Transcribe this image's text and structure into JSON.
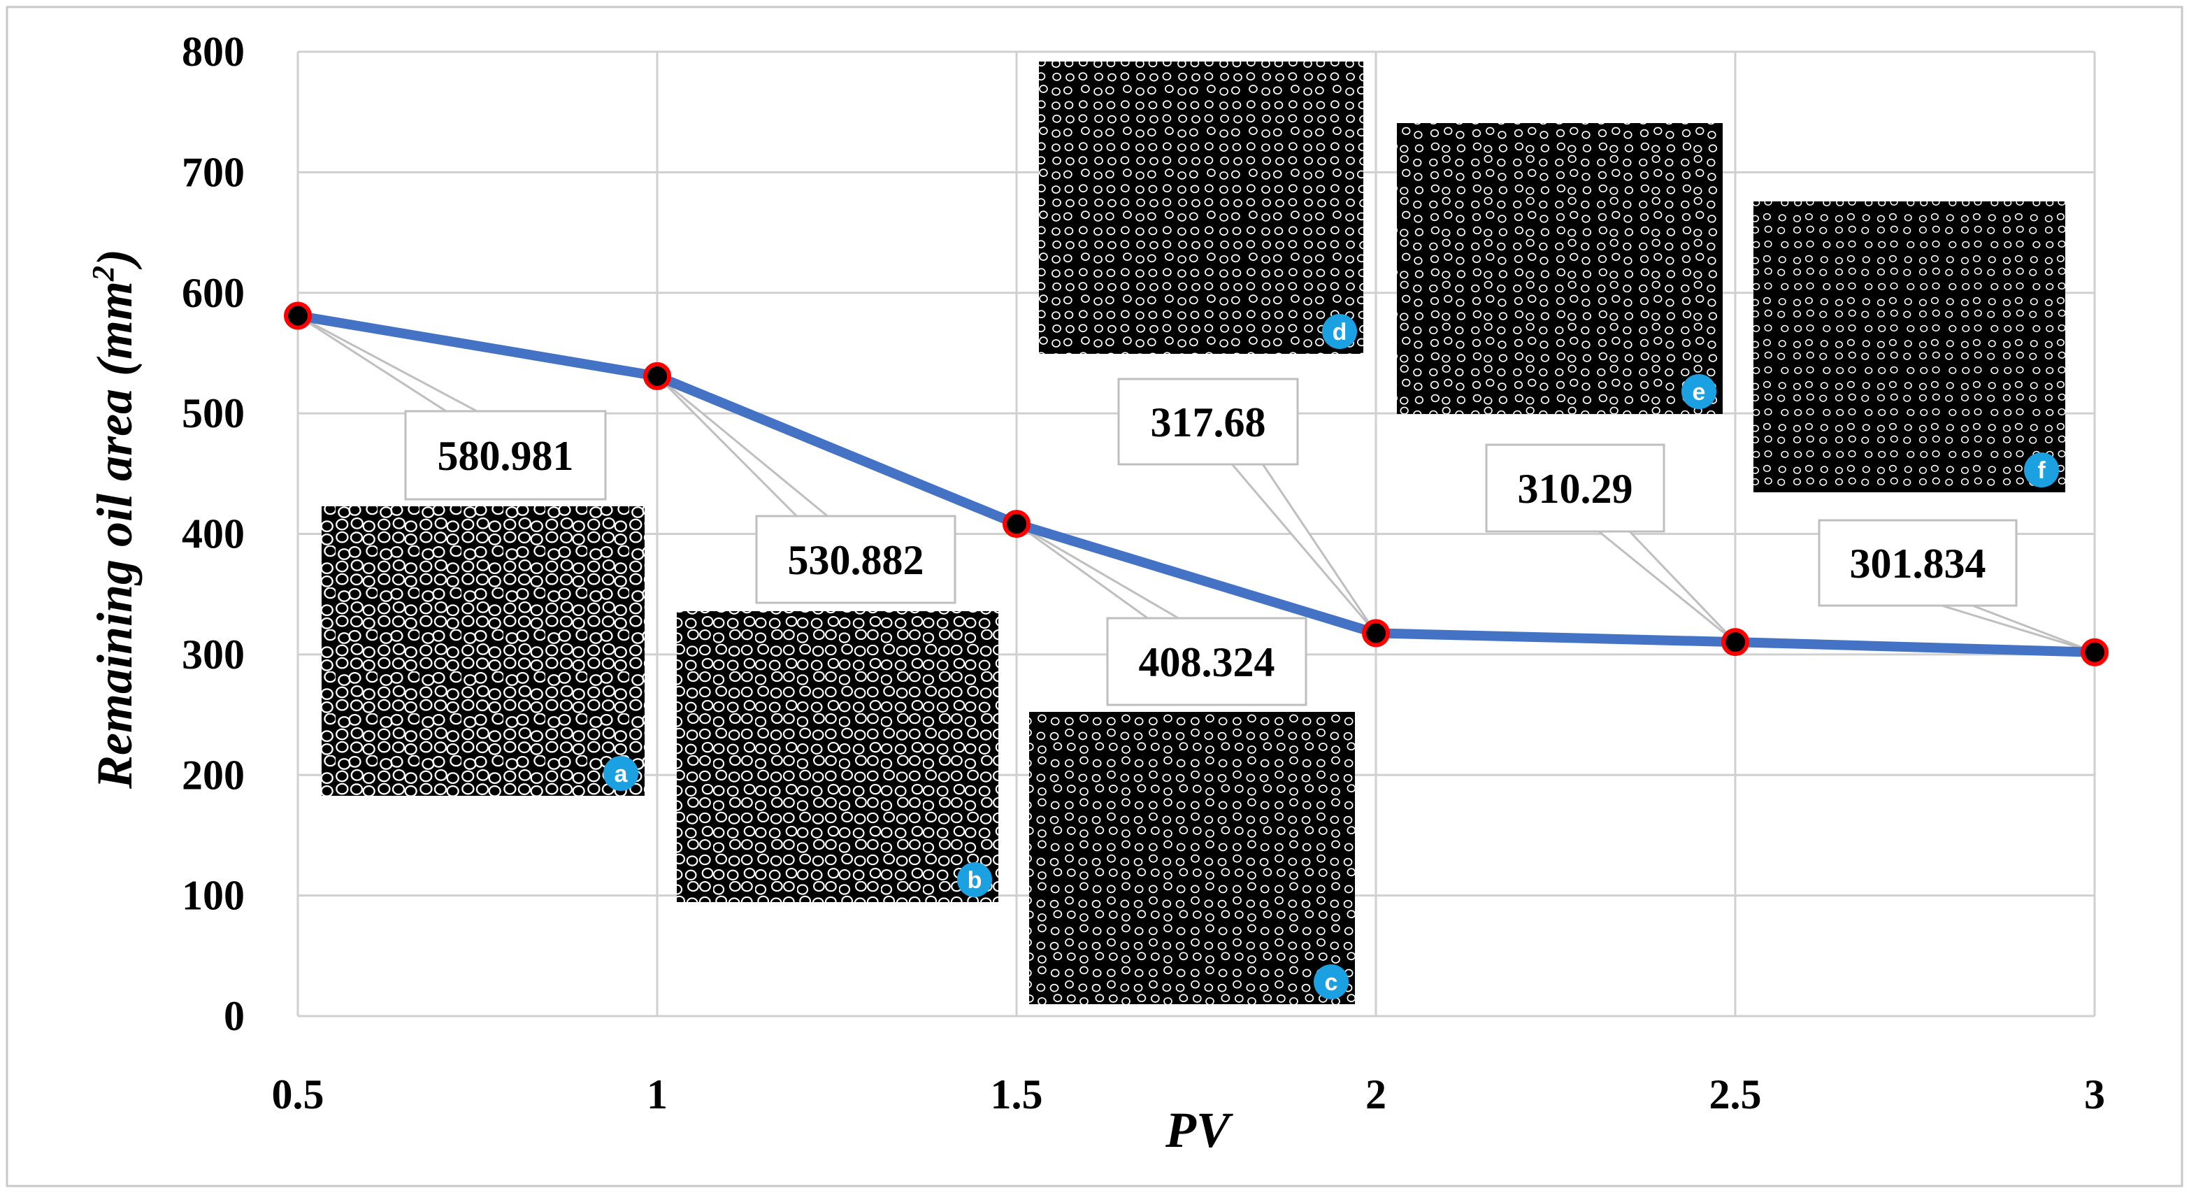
{
  "chart_data": {
    "type": "line",
    "x": [
      0.5,
      1,
      1.5,
      2,
      2.5,
      3
    ],
    "x_tick_labels": [
      "0.5",
      "1",
      "1.5",
      "2",
      "2.5",
      "3"
    ],
    "y_ticks": [
      0,
      100,
      200,
      300,
      400,
      500,
      600,
      700,
      800
    ],
    "values": [
      580.981,
      530.882,
      408.324,
      317.68,
      310.29,
      301.834
    ],
    "data_labels": [
      "580.981",
      "530.882",
      "408.324",
      "317.68",
      "310.29",
      "301.834"
    ],
    "xlabel": "PV",
    "ylabel": "Remaining oil area (mm",
    "ylabel_sup": "2",
    "ylabel_end": ")",
    "xlim": [
      0.5,
      3
    ],
    "ylim": [
      0,
      800
    ],
    "grid": true,
    "line_color": "#4472C4",
    "marker_edge_color": "#FF0000",
    "marker_fill_color": "#000000",
    "inset_badge_color": "#1BA1E2",
    "inset_images": [
      "a",
      "b",
      "c",
      "d",
      "e",
      "f"
    ]
  }
}
